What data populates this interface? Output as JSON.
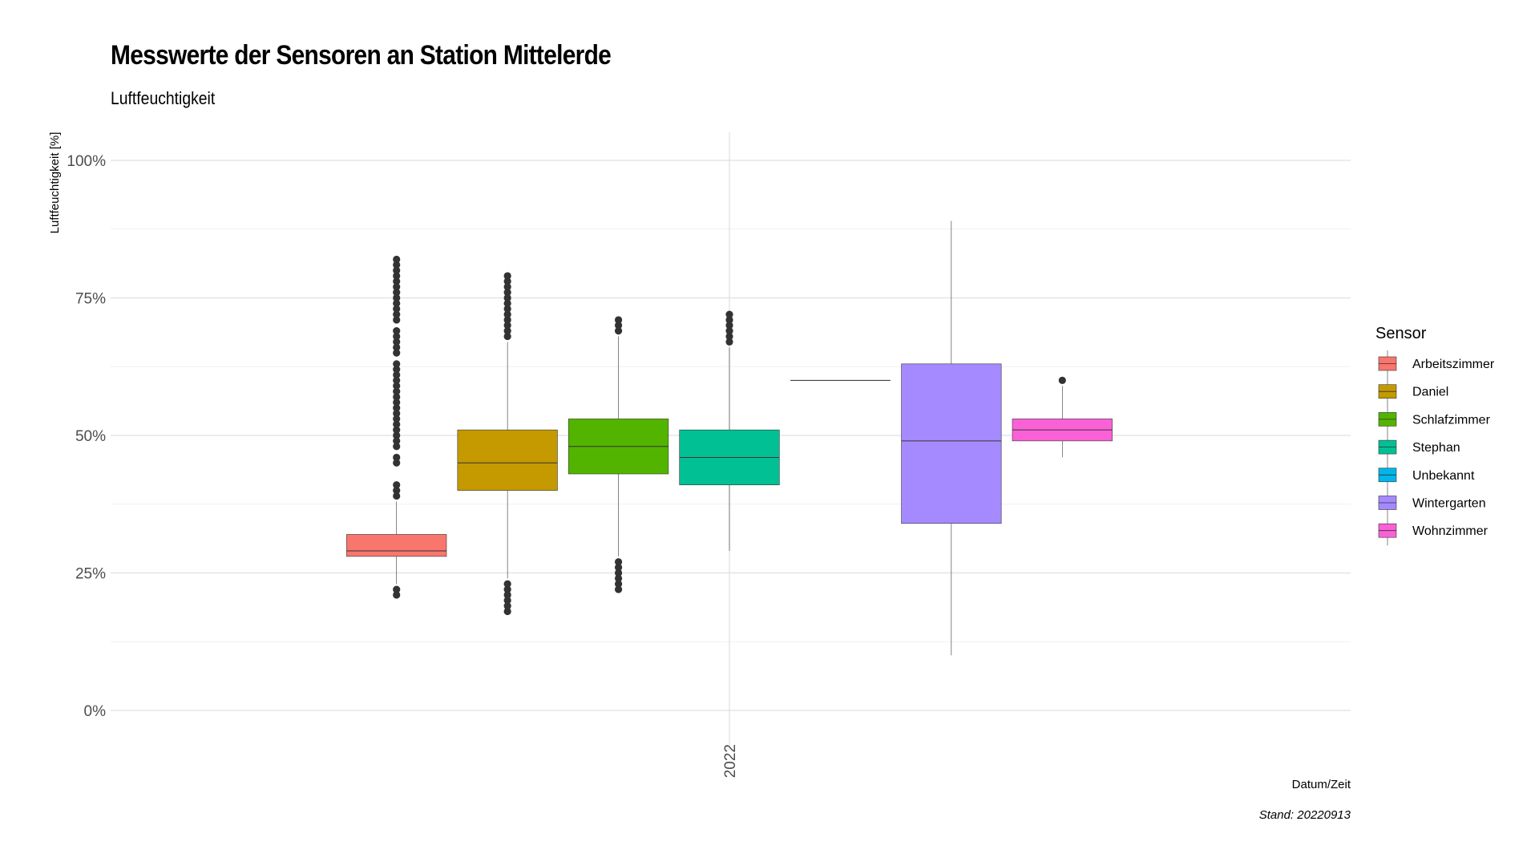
{
  "chart_data": {
    "type": "boxplot",
    "title": "Messwerte der Sensoren an Station Mittelerde",
    "subtitle": "Luftfeuchtigkeit",
    "xlabel": "Datum/Zeit",
    "ylabel": "Luftfeuchtigkeit [%]",
    "caption": "Stand: 20220913",
    "x_tick": "2022",
    "ylim": [
      -5,
      105
    ],
    "y_ticks": [
      {
        "value": 0,
        "label": "0%"
      },
      {
        "value": 25,
        "label": "25%"
      },
      {
        "value": 50,
        "label": "50%"
      },
      {
        "value": 75,
        "label": "75%"
      },
      {
        "value": 100,
        "label": "100%"
      }
    ],
    "legend_title": "Sensor",
    "legend_position": "right",
    "grid": true,
    "series": [
      {
        "name": "Arbeitszimmer",
        "color": "#F8766D",
        "q1": 28,
        "median": 29,
        "q3": 32,
        "whisker_low": 23,
        "whisker_high": 38,
        "outliers": [
          21,
          22,
          39,
          40,
          41,
          45,
          46,
          48,
          49,
          50,
          51,
          52,
          53,
          54,
          55,
          56,
          57,
          58,
          59,
          60,
          61,
          62,
          63,
          65,
          66,
          67,
          68,
          69,
          71,
          72,
          73,
          74,
          75,
          76,
          77,
          78,
          79,
          80,
          81,
          82
        ]
      },
      {
        "name": "Daniel",
        "color": "#C49A00",
        "q1": 40,
        "median": 45,
        "q3": 51,
        "whisker_low": 24,
        "whisker_high": 67,
        "outliers": [
          18,
          19,
          20,
          21,
          22,
          23,
          68,
          69,
          70,
          71,
          72,
          73,
          74,
          75,
          76,
          77,
          78,
          79
        ]
      },
      {
        "name": "Schlafzimmer",
        "color": "#53B400",
        "q1": 43,
        "median": 48,
        "q3": 53,
        "whisker_low": 28,
        "whisker_high": 68,
        "outliers": [
          22,
          23,
          24,
          25,
          26,
          27,
          69,
          70,
          71
        ]
      },
      {
        "name": "Stephan",
        "color": "#00C094",
        "q1": 41,
        "median": 46,
        "q3": 51,
        "whisker_low": 29,
        "whisker_high": 66,
        "outliers": [
          67,
          68,
          69,
          70,
          71,
          72
        ]
      },
      {
        "name": "Unbekannt",
        "color": "#00B6EB",
        "q1": 60,
        "median": 60,
        "q3": 60,
        "whisker_low": 60,
        "whisker_high": 60,
        "outliers": []
      },
      {
        "name": "Wintergarten",
        "color": "#A58AFF",
        "q1": 34,
        "median": 49,
        "q3": 63,
        "whisker_low": 10,
        "whisker_high": 89,
        "outliers": []
      },
      {
        "name": "Wohnzimmer",
        "color": "#FB61D7",
        "q1": 49,
        "median": 51,
        "q3": 53,
        "whisker_low": 46,
        "whisker_high": 59,
        "outliers": [
          60
        ]
      }
    ]
  }
}
